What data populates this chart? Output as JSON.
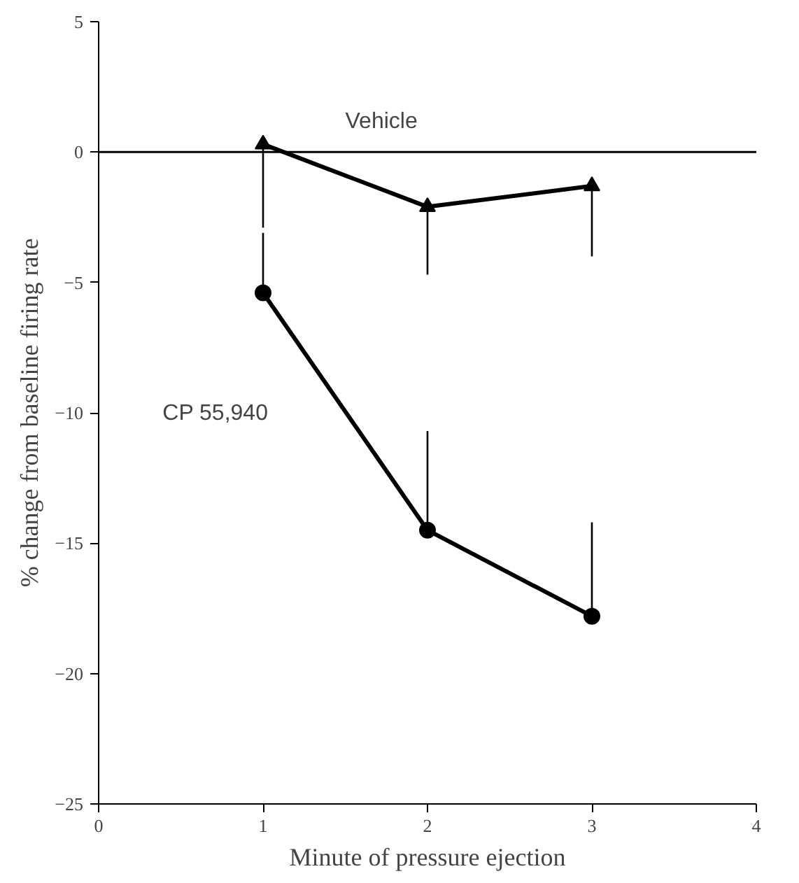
{
  "chart_data": {
    "type": "line",
    "xlabel": "Minute of pressure ejection",
    "ylabel": "% change from baseline firing rate",
    "x": [
      1,
      2,
      3
    ],
    "series": [
      {
        "name": "Vehicle",
        "color": "#000000",
        "marker": "triangle",
        "values": [
          0.3,
          -2.1,
          -1.3
        ],
        "errors": [
          [
            -2.9,
            0.3
          ],
          [
            -4.7,
            -2.1
          ],
          [
            -4.0,
            -1.3
          ]
        ]
      },
      {
        "name": "CP 55,940",
        "color": "#000000",
        "marker": "circle",
        "values": [
          -5.4,
          -14.5,
          -17.8
        ],
        "errors": [
          [
            -5.4,
            -3.1
          ],
          [
            -14.5,
            -10.7
          ],
          [
            -17.8,
            -14.2
          ]
        ]
      }
    ],
    "xlim": [
      0,
      4
    ],
    "xticks": [
      0,
      1,
      2,
      3,
      4
    ],
    "ylim": [
      -25,
      5
    ],
    "yticks": [
      -25,
      -20,
      -15,
      -10,
      -5,
      0,
      5
    ],
    "ref_lines": [
      {
        "axis": "y",
        "value": 0,
        "color": "#000000"
      }
    ],
    "grid": false,
    "line_style": "solid"
  }
}
